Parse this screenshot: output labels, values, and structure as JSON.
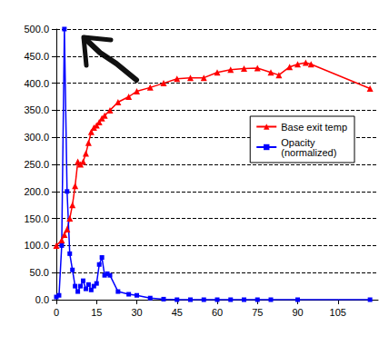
{
  "chart_data": {
    "type": "line",
    "xlim": [
      0,
      120
    ],
    "xticks": [
      0,
      15,
      30,
      45,
      60,
      75,
      90,
      105
    ],
    "ylim": [
      0,
      500
    ],
    "yticks": [
      {
        "value": 0,
        "label": "0.0"
      },
      {
        "value": 50,
        "label": "50.0"
      },
      {
        "value": 100,
        "label": "100.0"
      },
      {
        "value": 150,
        "label": "150.0"
      },
      {
        "value": 200,
        "label": "200.0"
      },
      {
        "value": 250,
        "label": "250.0"
      },
      {
        "value": 300,
        "label": "300.0"
      },
      {
        "value": 350,
        "label": "350.0"
      },
      {
        "value": 400,
        "label": "400.0"
      },
      {
        "value": 450,
        "label": "450.0"
      },
      {
        "value": 500,
        "label": "500.0"
      }
    ],
    "grid": true,
    "legend": "right",
    "series": [
      {
        "name": "Base exit temp",
        "color": "#ff0000",
        "marker": "triangle",
        "x": [
          0,
          2,
          3,
          4,
          5,
          6,
          7,
          8,
          9,
          10,
          11,
          12,
          13,
          14,
          15,
          16,
          17,
          18,
          20,
          23,
          27,
          30,
          35,
          40,
          45,
          50,
          55,
          60,
          65,
          70,
          75,
          80,
          83,
          87,
          90,
          93,
          95,
          117
        ],
        "values": [
          100,
          110,
          120,
          130,
          150,
          175,
          210,
          255,
          250,
          255,
          270,
          290,
          310,
          318,
          322,
          328,
          335,
          340,
          350,
          365,
          375,
          385,
          392,
          400,
          408,
          410,
          410,
          420,
          425,
          427,
          428,
          420,
          415,
          430,
          435,
          438,
          435,
          390
        ]
      },
      {
        "name": "Opacity\n(normalized)",
        "color": "#0000ff",
        "marker": "square",
        "x": [
          0,
          1,
          2,
          3,
          4,
          5,
          6,
          7,
          8,
          9,
          10,
          11,
          12,
          13,
          14,
          15,
          16,
          17,
          18,
          19,
          20,
          23,
          27,
          30,
          35,
          40,
          45,
          50,
          55,
          60,
          65,
          70,
          75,
          80,
          90,
          117
        ],
        "values": [
          5,
          8,
          100,
          500,
          200,
          85,
          55,
          25,
          15,
          25,
          35,
          20,
          28,
          18,
          25,
          30,
          65,
          78,
          45,
          48,
          45,
          15,
          10,
          8,
          3,
          1,
          0,
          0,
          0,
          0,
          0,
          0,
          0,
          0,
          0,
          0
        ]
      }
    ]
  }
}
